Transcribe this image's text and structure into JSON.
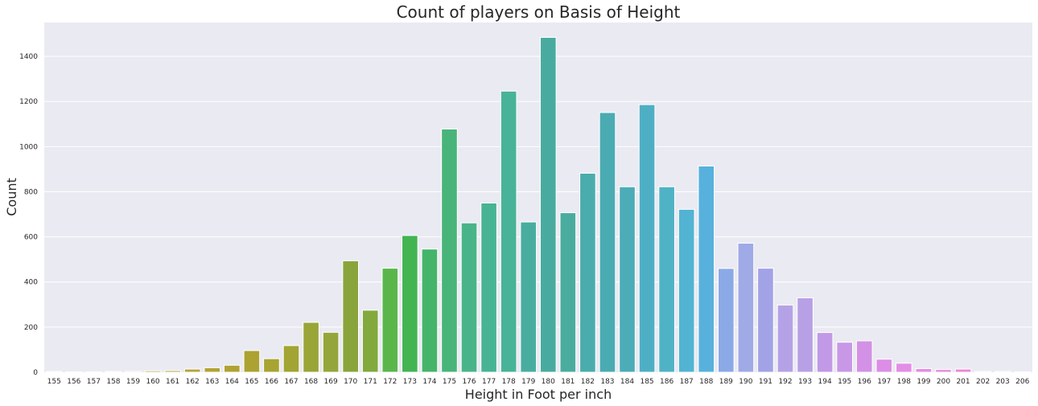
{
  "chart_data": {
    "type": "bar",
    "title": "Count of players on Basis of Height",
    "xlabel": "Height in Foot per inch",
    "ylabel": "Count",
    "categories": [
      "155",
      "156",
      "157",
      "158",
      "159",
      "160",
      "161",
      "162",
      "163",
      "164",
      "165",
      "166",
      "167",
      "168",
      "169",
      "170",
      "171",
      "172",
      "173",
      "174",
      "175",
      "176",
      "177",
      "178",
      "179",
      "180",
      "181",
      "182",
      "183",
      "184",
      "185",
      "186",
      "187",
      "188",
      "189",
      "190",
      "191",
      "192",
      "193",
      "194",
      "195",
      "196",
      "197",
      "198",
      "199",
      "200",
      "201",
      "202",
      "203",
      "206"
    ],
    "values": [
      3,
      2,
      2,
      3,
      4,
      6,
      7,
      14,
      20,
      31,
      96,
      60,
      118,
      221,
      177,
      494,
      275,
      461,
      606,
      546,
      1078,
      662,
      750,
      1246,
      666,
      1484,
      707,
      882,
      1151,
      822,
      1186,
      822,
      722,
      914,
      460,
      572,
      461,
      298,
      330,
      176,
      133,
      139,
      58,
      40,
      16,
      12,
      14,
      3,
      3,
      2
    ],
    "colors": [
      "#c09b7f",
      "#c19c70",
      "#c19f60",
      "#bea04f",
      "#bea15a",
      "#bba053",
      "#b7a33d",
      "#b4a33b",
      "#b1a436",
      "#aea332",
      "#aba232",
      "#a7a432",
      "#a2a434",
      "#99a537",
      "#94a63b",
      "#8aa43c",
      "#82a93d",
      "#5ab64b",
      "#42b452",
      "#45b46b",
      "#48b479",
      "#49b48a",
      "#48b493",
      "#48b398",
      "#48ad9f",
      "#49ab9f",
      "#4aac9e",
      "#4aacad",
      "#4babb2",
      "#4cacb8",
      "#4eafc4",
      "#4fb3c5",
      "#52b3d3",
      "#57b1dc",
      "#8aa9e6",
      "#9faae6",
      "#a2a2e6",
      "#b5a2e6",
      "#b7a0e6",
      "#c199e6",
      "#c898e6",
      "#d391e6",
      "#dc8ee6",
      "#e28ee6",
      "#e58be6",
      "#e889d9",
      "#eb88d0",
      "#ec88cc",
      "#ec87c5",
      "#ec87bd"
    ],
    "ylim": [
      0,
      1550
    ],
    "yticks": [
      0,
      200,
      400,
      600,
      800,
      1000,
      1200,
      1400
    ],
    "grid": true,
    "background": "#eaeaf2",
    "grid_color": "#ffffff"
  }
}
